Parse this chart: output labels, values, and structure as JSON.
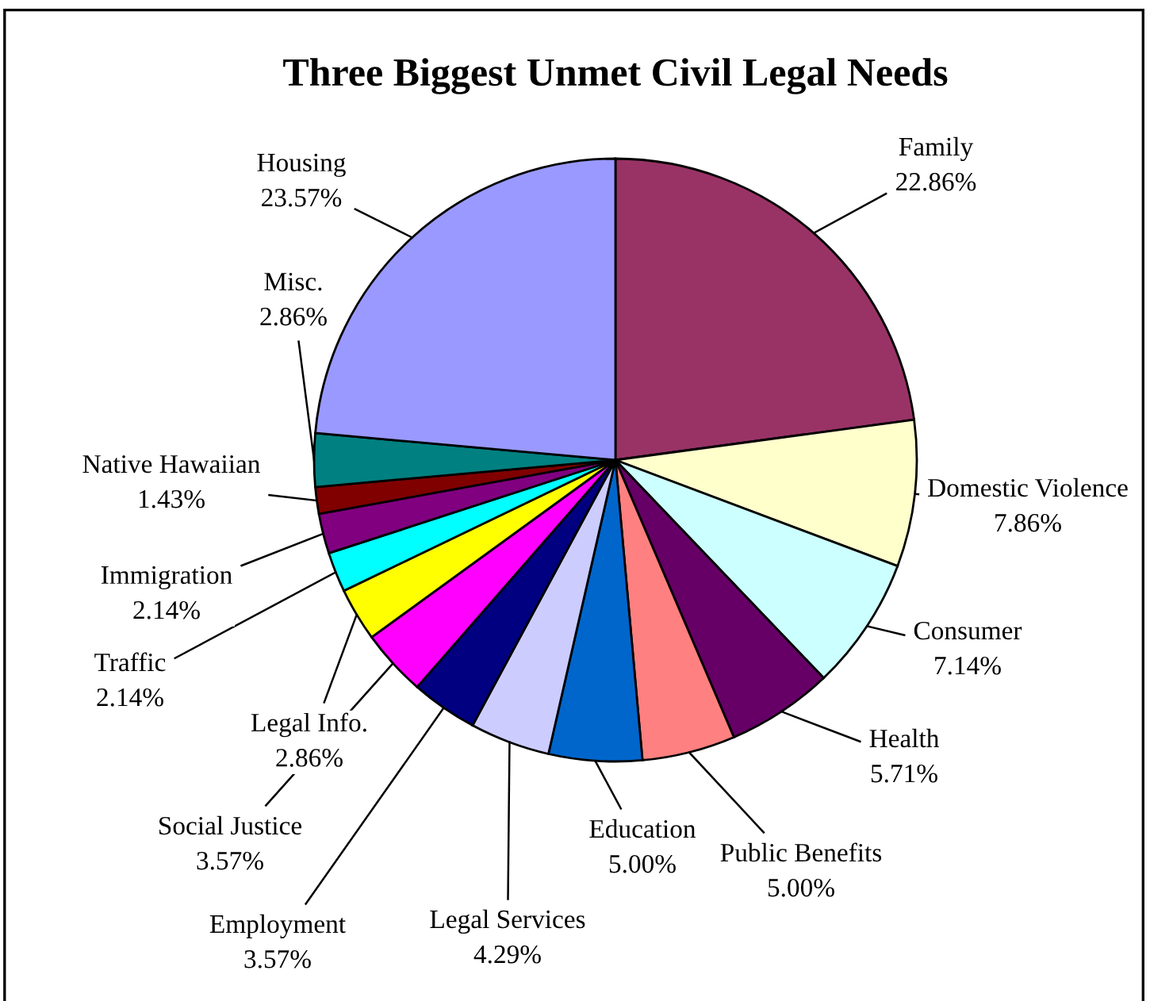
{
  "chart_data": {
    "type": "pie",
    "title": "Three Biggest Unmet Civil Legal Needs",
    "categories": [
      "Family",
      "Domestic Violence",
      "Consumer",
      "Health",
      "Public Benefits",
      "Education",
      "Legal Services",
      "Employment",
      "Social Justice",
      "Legal Info.",
      "Traffic",
      "Immigration",
      "Native Hawaiian",
      "Misc.",
      "Housing"
    ],
    "values": [
      22.86,
      7.86,
      7.14,
      5.71,
      5.0,
      5.0,
      4.29,
      3.57,
      3.57,
      2.86,
      2.14,
      2.14,
      1.43,
      2.86,
      23.57
    ],
    "colors": [
      "#993366",
      "#ffffcc",
      "#ccffff",
      "#660066",
      "#ff8080",
      "#0066cc",
      "#ccccff",
      "#000080",
      "#ff00ff",
      "#ffff00",
      "#00ffff",
      "#800080",
      "#800000",
      "#008080",
      "#9999ff"
    ],
    "value_labels": [
      "22.86%",
      "7.86%",
      "7.14%",
      "5.71%",
      "5.00%",
      "5.00%",
      "4.29%",
      "3.57%",
      "3.57%",
      "2.86%",
      "2.14%",
      "2.14%",
      "1.43%",
      "2.86%",
      "23.57%"
    ]
  }
}
